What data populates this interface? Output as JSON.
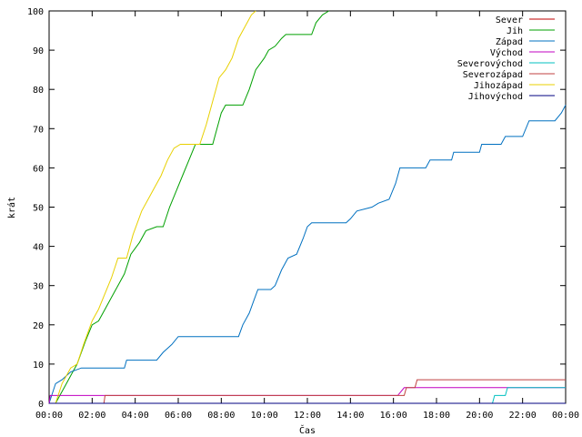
{
  "chart_data": {
    "type": "line",
    "xlabel": "Čas",
    "ylabel": "krát",
    "xlim": [
      0,
      24
    ],
    "ylim": [
      0,
      100
    ],
    "x_ticks": [
      {
        "v": 0,
        "label": "00:00"
      },
      {
        "v": 2,
        "label": "02:00"
      },
      {
        "v": 4,
        "label": "04:00"
      },
      {
        "v": 6,
        "label": "06:00"
      },
      {
        "v": 8,
        "label": "08:00"
      },
      {
        "v": 10,
        "label": "10:00"
      },
      {
        "v": 12,
        "label": "12:00"
      },
      {
        "v": 14,
        "label": "14:00"
      },
      {
        "v": 16,
        "label": "16:00"
      },
      {
        "v": 18,
        "label": "18:00"
      },
      {
        "v": 20,
        "label": "20:00"
      },
      {
        "v": 22,
        "label": "22:00"
      },
      {
        "v": 24,
        "label": "00:00"
      }
    ],
    "y_ticks": [
      0,
      10,
      20,
      30,
      40,
      50,
      60,
      70,
      80,
      90,
      100
    ],
    "grid": false,
    "legend_position": "top-right",
    "series": [
      {
        "name": "Sever",
        "color": "#c00000",
        "points": [
          [
            0,
            0
          ],
          [
            24,
            0
          ]
        ]
      },
      {
        "name": "Jih",
        "color": "#00a000",
        "points": [
          [
            0,
            0
          ],
          [
            0.3,
            0
          ],
          [
            0.5,
            2
          ],
          [
            0.7,
            4
          ],
          [
            0.9,
            6
          ],
          [
            1.1,
            8
          ],
          [
            1.3,
            10
          ],
          [
            1.5,
            13
          ],
          [
            1.7,
            16
          ],
          [
            2.0,
            20
          ],
          [
            2.3,
            21
          ],
          [
            2.6,
            24
          ],
          [
            2.9,
            27
          ],
          [
            3.2,
            30
          ],
          [
            3.5,
            33
          ],
          [
            3.8,
            38
          ],
          [
            4.2,
            41
          ],
          [
            4.5,
            44
          ],
          [
            5.0,
            45
          ],
          [
            5.3,
            45
          ],
          [
            5.6,
            50
          ],
          [
            5.9,
            54
          ],
          [
            6.2,
            58
          ],
          [
            6.5,
            62
          ],
          [
            6.8,
            66
          ],
          [
            7.6,
            66
          ],
          [
            8.0,
            74
          ],
          [
            8.2,
            76
          ],
          [
            9.0,
            76
          ],
          [
            9.3,
            80
          ],
          [
            9.6,
            85
          ],
          [
            10.0,
            88
          ],
          [
            10.2,
            90
          ],
          [
            10.5,
            91
          ],
          [
            10.8,
            93
          ],
          [
            11.0,
            94
          ],
          [
            12.2,
            94
          ],
          [
            12.4,
            97
          ],
          [
            12.7,
            99
          ],
          [
            13.0,
            100
          ]
        ]
      },
      {
        "name": "Západ",
        "color": "#0070c0",
        "points": [
          [
            0,
            0
          ],
          [
            0.3,
            5
          ],
          [
            0.6,
            6
          ],
          [
            1.0,
            8
          ],
          [
            1.5,
            9
          ],
          [
            3.5,
            9
          ],
          [
            3.6,
            11
          ],
          [
            5.0,
            11
          ],
          [
            5.3,
            13
          ],
          [
            5.7,
            15
          ],
          [
            6.0,
            17
          ],
          [
            8.8,
            17
          ],
          [
            9.0,
            20
          ],
          [
            9.3,
            23
          ],
          [
            9.5,
            26
          ],
          [
            9.7,
            29
          ],
          [
            10.3,
            29
          ],
          [
            10.5,
            30
          ],
          [
            10.8,
            34
          ],
          [
            11.1,
            37
          ],
          [
            11.5,
            38
          ],
          [
            11.8,
            42
          ],
          [
            12.0,
            45
          ],
          [
            12.2,
            46
          ],
          [
            13.8,
            46
          ],
          [
            14.0,
            47
          ],
          [
            14.3,
            49
          ],
          [
            15.0,
            50
          ],
          [
            15.3,
            51
          ],
          [
            15.8,
            52
          ],
          [
            16.1,
            56
          ],
          [
            16.3,
            60
          ],
          [
            17.5,
            60
          ],
          [
            17.7,
            62
          ],
          [
            18.7,
            62
          ],
          [
            18.8,
            64
          ],
          [
            20.0,
            64
          ],
          [
            20.1,
            66
          ],
          [
            21.0,
            66
          ],
          [
            21.2,
            68
          ],
          [
            22.0,
            68
          ],
          [
            22.3,
            72
          ],
          [
            23.5,
            72
          ],
          [
            23.8,
            74
          ],
          [
            24.0,
            76
          ]
        ]
      },
      {
        "name": "Východ",
        "color": "#c000c0",
        "points": [
          [
            0,
            0
          ],
          [
            0.05,
            2
          ],
          [
            16.2,
            2
          ],
          [
            16.5,
            4
          ],
          [
            24,
            4
          ]
        ]
      },
      {
        "name": "Severovýchod",
        "color": "#00c0c0",
        "points": [
          [
            0,
            0
          ],
          [
            20.6,
            0
          ],
          [
            20.7,
            2
          ],
          [
            21.2,
            2
          ],
          [
            21.3,
            4
          ],
          [
            24,
            4
          ]
        ]
      },
      {
        "name": "Severozápad",
        "color": "#c04040",
        "points": [
          [
            0,
            0
          ],
          [
            2.55,
            0
          ],
          [
            2.6,
            2
          ],
          [
            16.5,
            2
          ],
          [
            16.6,
            4
          ],
          [
            17.0,
            4
          ],
          [
            17.1,
            6
          ],
          [
            24,
            6
          ]
        ]
      },
      {
        "name": "Jihozápad",
        "color": "#e8d000",
        "points": [
          [
            0,
            0
          ],
          [
            0.3,
            0
          ],
          [
            0.6,
            5
          ],
          [
            1.0,
            9
          ],
          [
            1.3,
            10
          ],
          [
            1.6,
            15
          ],
          [
            2.0,
            21
          ],
          [
            2.3,
            24
          ],
          [
            2.6,
            28
          ],
          [
            2.9,
            32
          ],
          [
            3.2,
            37
          ],
          [
            3.6,
            37
          ],
          [
            3.9,
            43
          ],
          [
            4.3,
            49
          ],
          [
            4.6,
            52
          ],
          [
            4.9,
            55
          ],
          [
            5.2,
            58
          ],
          [
            5.5,
            62
          ],
          [
            5.8,
            65
          ],
          [
            6.1,
            66
          ],
          [
            7.0,
            66
          ],
          [
            7.3,
            71
          ],
          [
            7.6,
            77
          ],
          [
            7.9,
            83
          ],
          [
            8.2,
            85
          ],
          [
            8.5,
            88
          ],
          [
            8.8,
            93
          ],
          [
            9.1,
            96
          ],
          [
            9.4,
            99
          ],
          [
            9.6,
            100
          ]
        ]
      },
      {
        "name": "Jihovýchod",
        "color": "#000080",
        "points": [
          [
            0,
            0
          ],
          [
            24,
            0
          ]
        ]
      }
    ]
  }
}
